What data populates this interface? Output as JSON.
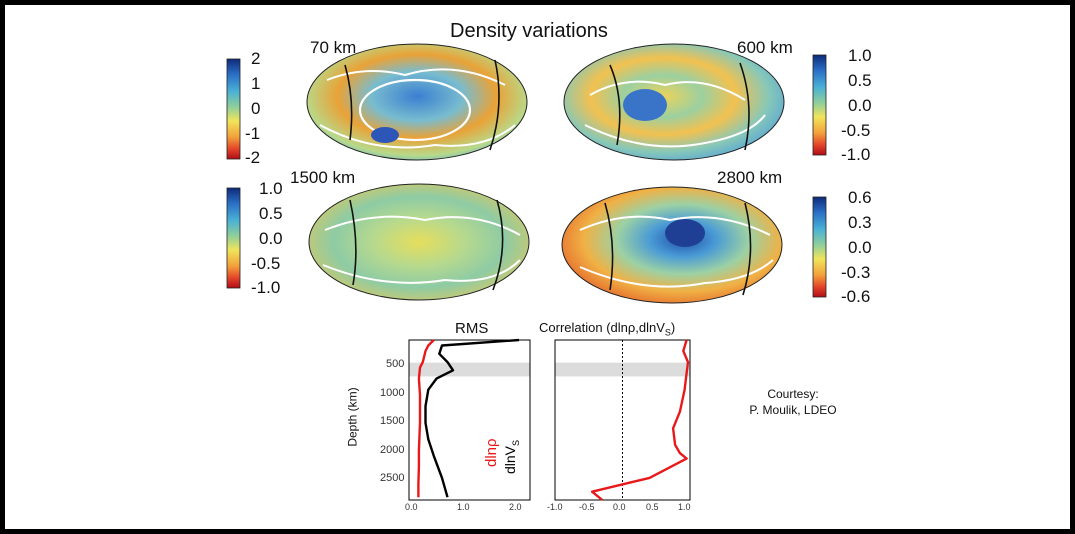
{
  "title": "Density variations",
  "maps": [
    {
      "depth_label": "70 km",
      "ticks": [
        "2",
        "1",
        "0",
        "-1",
        "-2"
      ]
    },
    {
      "depth_label": "600 km",
      "ticks": [
        "1.0",
        "0.5",
        "0.0",
        "-0.5",
        "-1.0"
      ]
    },
    {
      "depth_label": "1500 km",
      "ticks": [
        "1.0",
        "0.5",
        "0.0",
        "-0.5",
        "-1.0"
      ]
    },
    {
      "depth_label": "2800 km",
      "ticks": [
        "0.6",
        "0.3",
        "0.0",
        "-0.3",
        "-0.6"
      ]
    }
  ],
  "rms_panel": {
    "title": "RMS",
    "ylabel": "Depth (km)",
    "y_ticks": [
      "500",
      "1000",
      "1500",
      "2000",
      "2500"
    ],
    "x_ticks": [
      "0.0",
      "1.0",
      "2.0"
    ],
    "legend_rho": "dlnρ",
    "legend_vs": "dlnV",
    "legend_vs_sub": "S"
  },
  "corr_panel": {
    "title": "Correlation (dlnρ,dlnV",
    "title_sub": "S",
    "title_end": ")",
    "x_ticks": [
      "-1.0",
      "-0.5",
      "0.0",
      "0.5",
      "1.0"
    ]
  },
  "courtesy": {
    "line1": "Courtesy:",
    "line2": "P. Moulik, LDEO"
  },
  "chart_data": [
    {
      "type": "line",
      "title": "RMS",
      "ylabel": "Depth (km)",
      "xlim": [
        0,
        2.2
      ],
      "ylim": [
        2900,
        0
      ],
      "series": [
        {
          "name": "dlnVS",
          "color": "#000000",
          "x": [
            2.0,
            0.6,
            0.55,
            0.7,
            0.8,
            0.5,
            0.35,
            0.3,
            0.3,
            0.35,
            0.45,
            0.6,
            0.7
          ],
          "y": [
            0,
            100,
            250,
            400,
            550,
            700,
            900,
            1200,
            1500,
            1800,
            2100,
            2500,
            2850
          ]
        },
        {
          "name": "dlnρ",
          "color": "#e8191a",
          "x": [
            0.45,
            0.35,
            0.3,
            0.25,
            0.2,
            0.18,
            0.2,
            0.2,
            0.18,
            0.18,
            0.17,
            0.17
          ],
          "y": [
            0,
            100,
            200,
            400,
            500,
            700,
            1000,
            1500,
            2000,
            2300,
            2600,
            2850
          ]
        }
      ]
    },
    {
      "type": "line",
      "title": "Correlation (dlnρ,dlnVS)",
      "xlim": [
        -1.0,
        1.0
      ],
      "ylim": [
        2900,
        0
      ],
      "series": [
        {
          "name": "dlnρ vs dlnVS",
          "color": "#e8191a",
          "x": [
            0.95,
            0.9,
            0.97,
            0.95,
            0.92,
            0.85,
            0.75,
            0.78,
            0.85,
            0.95,
            0.4,
            -0.45,
            -0.3
          ],
          "y": [
            0,
            200,
            400,
            600,
            900,
            1300,
            1600,
            1900,
            2050,
            2150,
            2500,
            2750,
            2900
          ]
        }
      ]
    }
  ]
}
